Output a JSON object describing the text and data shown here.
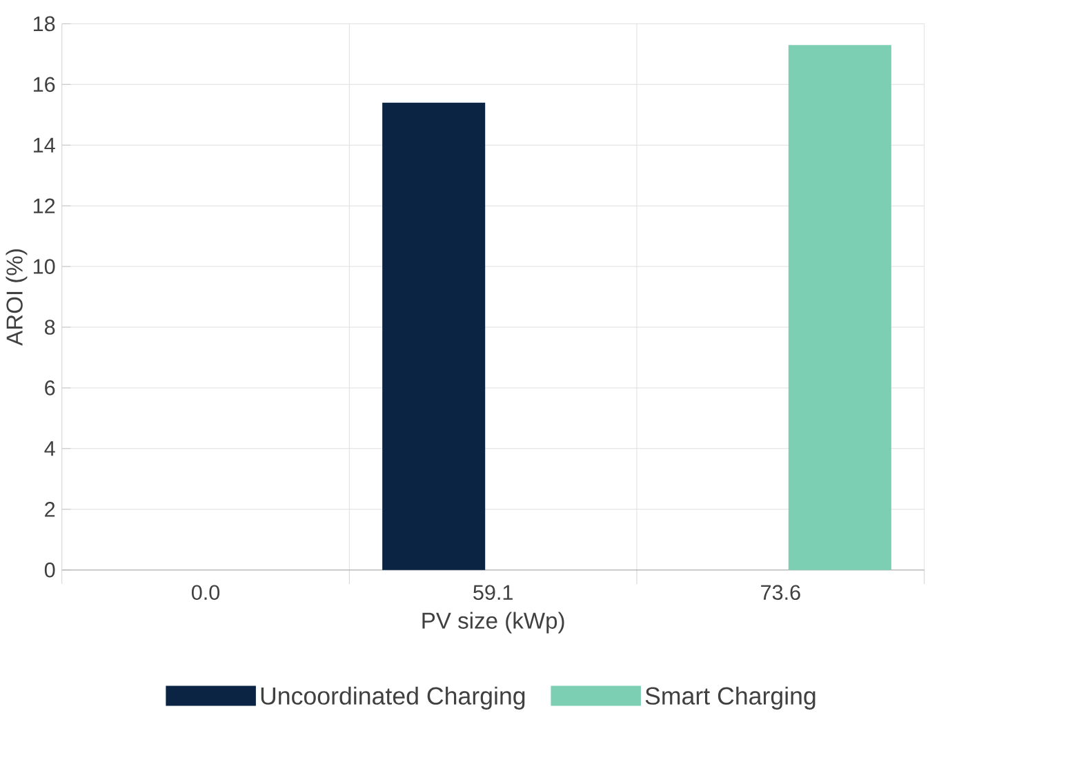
{
  "chart_data": {
    "type": "bar",
    "xlabel": "PV size (kWp)",
    "ylabel": "AROI (%)",
    "categories": [
      "0.0",
      "59.1",
      "73.6"
    ],
    "series": [
      {
        "name": "Uncoordinated Charging",
        "color": "#0b2443",
        "values": [
          null,
          15.4,
          null
        ]
      },
      {
        "name": "Smart Charging",
        "color": "#7dcfb4",
        "values": [
          null,
          null,
          17.3
        ]
      }
    ],
    "ylim": [
      0,
      18
    ],
    "yticks": [
      0,
      2,
      4,
      6,
      8,
      10,
      12,
      14,
      16,
      18
    ],
    "grid": true,
    "legend": "bottom"
  }
}
